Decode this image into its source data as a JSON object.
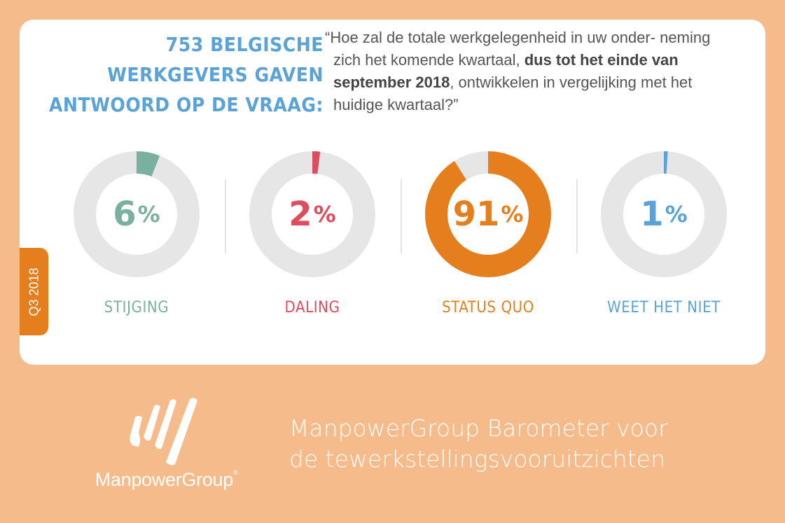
{
  "question": {
    "heading": [
      "753 BELGISCHE",
      "WERKGEVERS GAVEN",
      "ANTWOORD OP DE VRAAG:"
    ],
    "text_before": "“Hoe zal de totale werkgelegenheid in uw onder- neming zich het komende kwartaal, ",
    "text_bold": "dus tot het einde van september 2018",
    "text_after": ", ontwikkelen in vergelijking met het huidige kwartaal?”"
  },
  "period_tab": "Q3 2018",
  "colors": {
    "background": "#f6bb8a",
    "ring_track": "#e6e6e6",
    "stijging": "#7ab09f",
    "daling": "#de4d5e",
    "status_quo": "#e57f1e",
    "weet_het_niet": "#5ba3d6"
  },
  "chart_data": {
    "type": "pie",
    "unit": "%",
    "categories": [
      "STIJGING",
      "DALING",
      "STATUS QUO",
      "WEET HET NIET"
    ],
    "values": [
      6,
      2,
      91,
      1
    ],
    "colors": [
      "#7ab09f",
      "#de4d5e",
      "#e57f1e",
      "#5ba3d6"
    ]
  },
  "footer": {
    "brand": "ManpowerGroup",
    "brand_mark": "®",
    "logo_icon": "manpowergroup-stripes-logo",
    "title_line1": "ManpowerGroup Barometer voor",
    "title_line2": "de tewerkstellingsvooruitzichten"
  }
}
